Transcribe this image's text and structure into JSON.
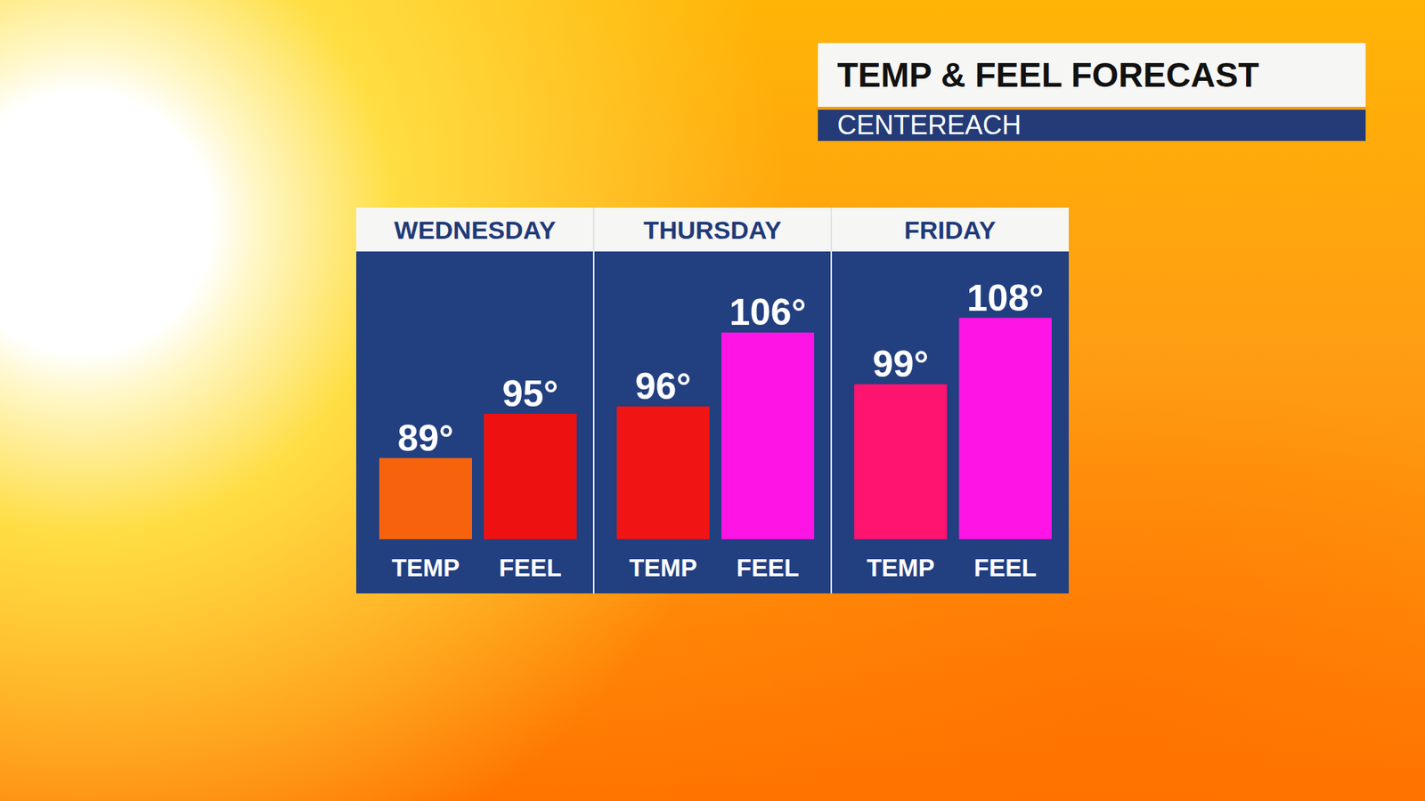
{
  "chart_data": {
    "type": "bar",
    "title": "TEMP & FEEL FORECAST",
    "subtitle": "CENTEREACH",
    "categories": [
      "WEDNESDAY",
      "THURSDAY",
      "FRIDAY"
    ],
    "series": [
      {
        "name": "TEMP",
        "colors": [
          "#f7630c",
          "#f01414",
          "#ff1470"
        ],
        "values": [
          89,
          96,
          99
        ],
        "value_labels": [
          "89°",
          "96°",
          "99°"
        ]
      },
      {
        "name": "FEEL",
        "colors": [
          "#ee1111",
          "#ff14e6",
          "#ff14e6"
        ],
        "values": [
          95,
          106,
          108
        ],
        "value_labels": [
          "95°",
          "106°",
          "108°"
        ]
      }
    ],
    "ylim": [
      78,
      117
    ],
    "tick_labels": "x",
    "data_labels": true
  }
}
